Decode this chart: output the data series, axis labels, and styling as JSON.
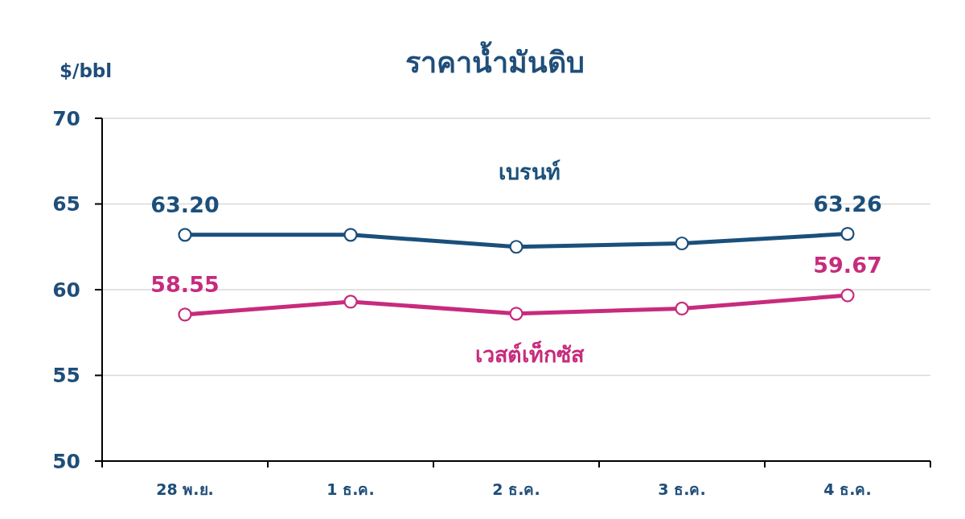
{
  "chart_data": {
    "type": "line",
    "title": "ราคาน้ำมันดิบ",
    "ylabel": "$/bbl",
    "categories": [
      "28 พ.ย.",
      "1 ธ.ค.",
      "2 ธ.ค.",
      "3 ธ.ค.",
      "4 ธ.ค."
    ],
    "series": [
      {
        "name": "เบรนท์",
        "color": "#1b4f7b",
        "values": [
          63.2,
          63.2,
          62.5,
          62.7,
          63.26
        ],
        "value_labels": [
          "63.20",
          null,
          null,
          null,
          "63.26"
        ]
      },
      {
        "name": "เวสต์เท็กซัส",
        "color": "#c72b7d",
        "values": [
          58.55,
          59.3,
          58.6,
          58.9,
          59.67
        ],
        "value_labels": [
          "58.55",
          null,
          null,
          null,
          "59.67"
        ]
      }
    ],
    "ylim": [
      50,
      70
    ],
    "yticks": [
      50,
      55,
      60,
      65,
      70
    ],
    "grid": "y",
    "legend": false,
    "marker": "circle",
    "line_style": "solid"
  }
}
